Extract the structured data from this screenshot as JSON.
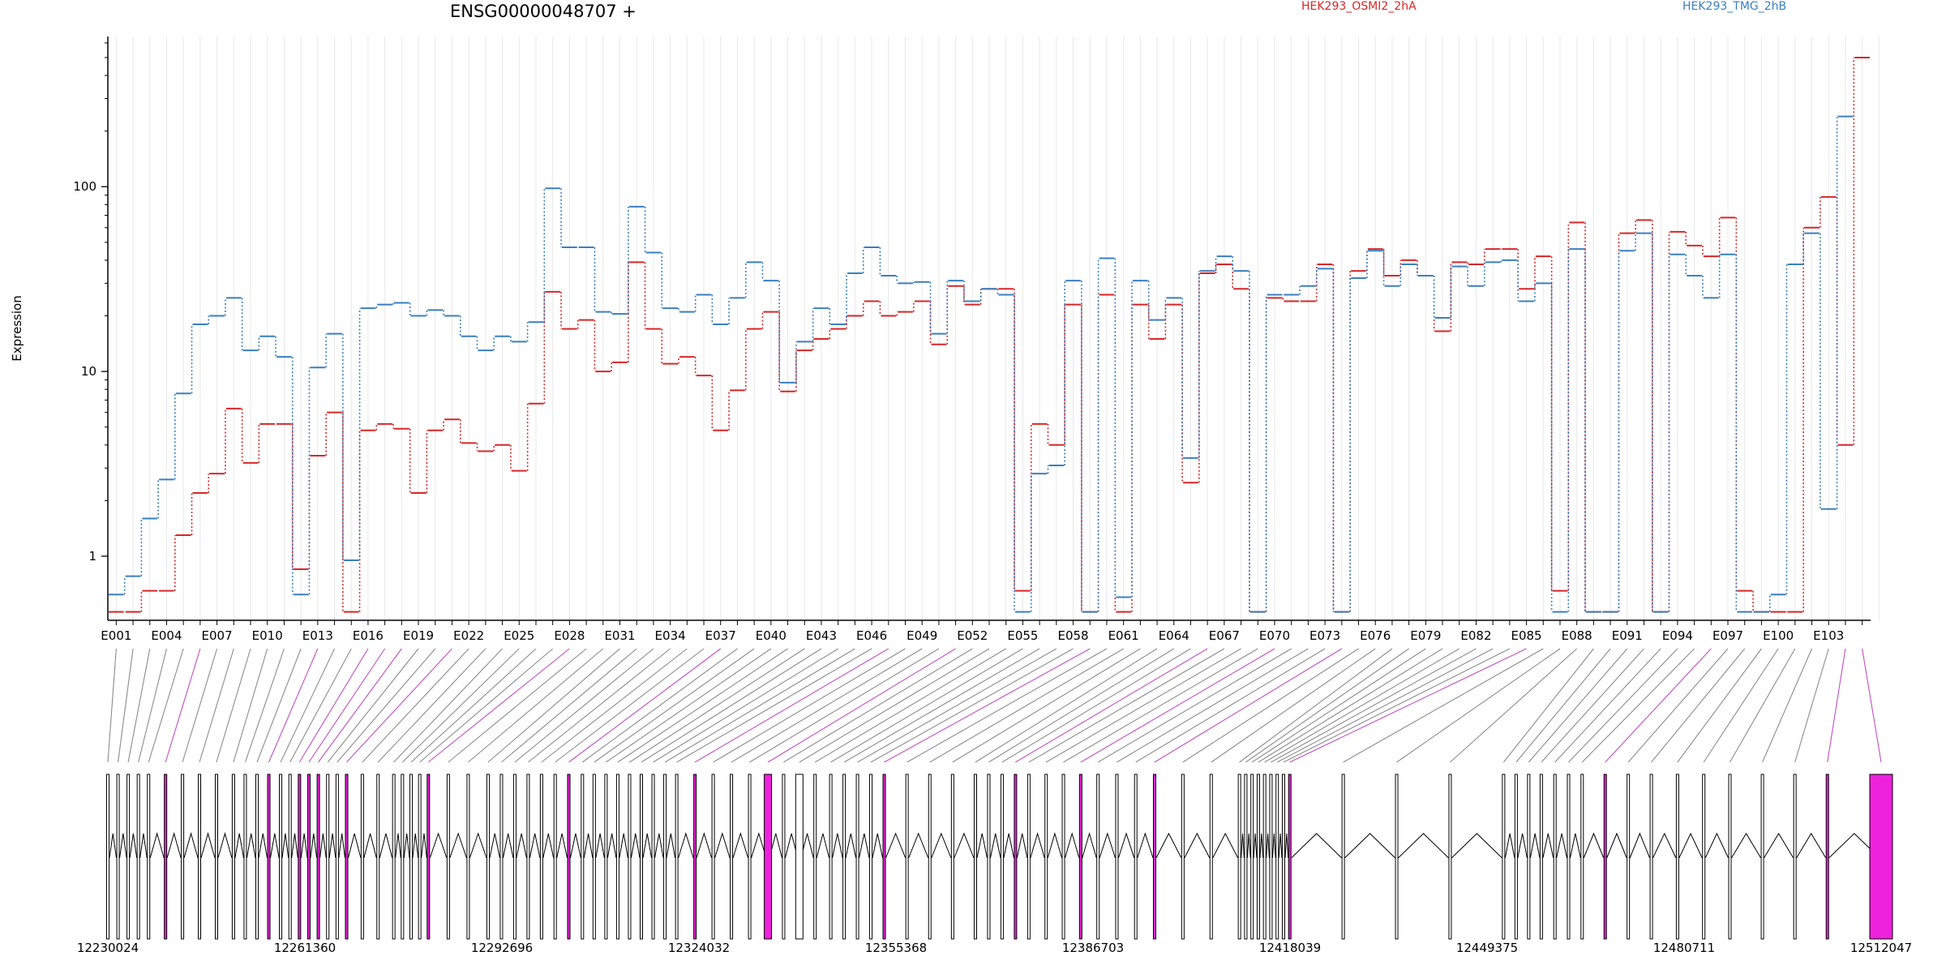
{
  "chart_data": {
    "type": "line",
    "title": "ENSG00000048707 +",
    "ylabel": "Expression",
    "xlabel": "",
    "yscale": "log",
    "ylim": [
      0.45,
      650
    ],
    "yticks": [
      1,
      10,
      100
    ],
    "grid": true,
    "legend_placement": "top",
    "exons": [
      "E001",
      "E002",
      "E003",
      "E004",
      "E005",
      "E006",
      "E007",
      "E008",
      "E009",
      "E010",
      "E011",
      "E012",
      "E013",
      "E014",
      "E015",
      "E016",
      "E017",
      "E018",
      "E019",
      "E020",
      "E021",
      "E022",
      "E023",
      "E024",
      "E025",
      "E026",
      "E027",
      "E028",
      "E029",
      "E030",
      "E031",
      "E032",
      "E033",
      "E034",
      "E035",
      "E036",
      "E037",
      "E038",
      "E039",
      "E040",
      "E041",
      "E042",
      "E043",
      "E044",
      "E045",
      "E046",
      "E047",
      "E048",
      "E049",
      "E050",
      "E051",
      "E052",
      "E053",
      "E054",
      "E055",
      "E056",
      "E057",
      "E058",
      "E059",
      "E060",
      "E061",
      "E062",
      "E063",
      "E064",
      "E065",
      "E066",
      "E067",
      "E068",
      "E069",
      "E070",
      "E071",
      "E072",
      "E073",
      "E074",
      "E075",
      "E076",
      "E077",
      "E078",
      "E079",
      "E080",
      "E081",
      "E082",
      "E083",
      "E084",
      "E085",
      "E086",
      "E087",
      "E088",
      "E089",
      "E090",
      "E091",
      "E092",
      "E093",
      "E094",
      "E095",
      "E096",
      "E097",
      "E098",
      "E099",
      "E100",
      "E101",
      "E102",
      "E103",
      "E104",
      "E105"
    ],
    "series": [
      {
        "name": "HEK293_OSMI2_2hA",
        "color": "#d62728",
        "values": [
          0.5,
          0.5,
          0.65,
          0.65,
          1.3,
          2.2,
          2.8,
          6.3,
          3.2,
          5.2,
          5.2,
          0.85,
          3.5,
          6,
          0.5,
          4.8,
          5.2,
          4.9,
          2.2,
          4.8,
          5.5,
          4.1,
          3.7,
          4,
          2.9,
          6.7,
          27,
          17,
          19,
          10,
          11.2,
          39,
          17,
          11,
          12,
          9.5,
          4.8,
          7.9,
          17,
          21,
          7.8,
          13,
          15,
          17,
          20,
          24,
          20,
          21,
          24,
          14,
          29,
          23,
          28,
          28,
          0.65,
          5.2,
          4,
          23,
          0.5,
          26,
          0.5,
          23,
          15,
          23,
          2.5,
          34,
          38,
          28,
          0.5,
          25,
          24,
          24,
          38,
          0.5,
          35,
          46,
          33,
          40,
          33,
          16.5,
          39,
          38,
          46,
          46,
          28,
          42,
          0.65,
          64,
          0.5,
          0.5,
          56,
          66,
          0.5,
          57,
          48,
          42,
          68,
          0.65,
          0.5,
          0.5,
          0.5,
          60,
          88,
          4,
          500
        ]
      },
      {
        "name": "HEK293_TMG_2hB",
        "color": "#3a7fbf",
        "values": [
          0.62,
          0.78,
          1.6,
          2.6,
          7.6,
          18,
          20,
          25,
          13,
          15.5,
          12,
          0.62,
          10.5,
          16,
          0.95,
          22,
          23,
          23.5,
          20,
          21.5,
          20,
          15.5,
          13,
          15.5,
          14.5,
          18.5,
          98,
          47,
          47,
          21,
          20.5,
          78,
          44,
          22,
          21,
          26,
          18,
          25,
          39,
          31,
          8.7,
          14.5,
          22,
          18,
          34,
          47,
          33,
          30,
          30.5,
          16,
          31,
          24,
          28,
          26,
          0.5,
          2.8,
          3.1,
          31,
          0.5,
          41,
          0.6,
          31,
          19,
          25,
          3.4,
          35,
          42,
          35,
          0.5,
          26,
          26,
          29,
          36,
          0.5,
          32,
          45,
          29,
          38,
          33,
          19.5,
          37,
          29,
          39,
          40,
          24,
          30,
          0.5,
          46,
          0.5,
          0.5,
          45,
          56,
          0.5,
          43,
          33,
          25,
          43,
          0.5,
          0.5,
          0.62,
          38,
          56,
          1.8,
          240
        ]
      }
    ],
    "exon_tick_labels": [
      "E001",
      "E004",
      "E007",
      "E010",
      "E013",
      "E016",
      "E019",
      "E022",
      "E025",
      "E028",
      "E031",
      "E034",
      "E037",
      "E040",
      "E043",
      "E046",
      "E049",
      "E052",
      "E055",
      "E058",
      "E061",
      "E064",
      "E067",
      "E070",
      "E073",
      "E076",
      "E079",
      "E082",
      "E085",
      "E088",
      "E091",
      "E094",
      "E097",
      "E100",
      "E103"
    ],
    "genomic_axis": {
      "range": [
        12230024,
        12512047
      ],
      "ticks": [
        12230024,
        12261360,
        12292696,
        12324032,
        12355368,
        12386703,
        12418039,
        12449375,
        12480711,
        12512047
      ]
    }
  }
}
